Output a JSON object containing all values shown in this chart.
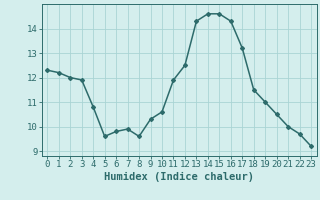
{
  "x": [
    0,
    1,
    2,
    3,
    4,
    5,
    6,
    7,
    8,
    9,
    10,
    11,
    12,
    13,
    14,
    15,
    16,
    17,
    18,
    19,
    20,
    21,
    22,
    23
  ],
  "y": [
    12.3,
    12.2,
    12.0,
    11.9,
    10.8,
    9.6,
    9.8,
    9.9,
    9.6,
    10.3,
    10.6,
    11.9,
    12.5,
    14.3,
    14.6,
    14.6,
    14.3,
    13.2,
    11.5,
    11.0,
    10.5,
    10.0,
    9.7,
    9.2
  ],
  "xlabel": "Humidex (Indice chaleur)",
  "ylim": [
    8.8,
    15.0
  ],
  "xlim": [
    -0.5,
    23.5
  ],
  "yticks": [
    9,
    10,
    11,
    12,
    13,
    14
  ],
  "xticks": [
    0,
    1,
    2,
    3,
    4,
    5,
    6,
    7,
    8,
    9,
    10,
    11,
    12,
    13,
    14,
    15,
    16,
    17,
    18,
    19,
    20,
    21,
    22,
    23
  ],
  "line_color": "#2d6b6b",
  "marker": "D",
  "marker_size": 2.0,
  "bg_color": "#d4eeed",
  "grid_color": "#aad4d4",
  "line_width": 1.1,
  "xlabel_fontsize": 7.5,
  "tick_fontsize": 6.5
}
